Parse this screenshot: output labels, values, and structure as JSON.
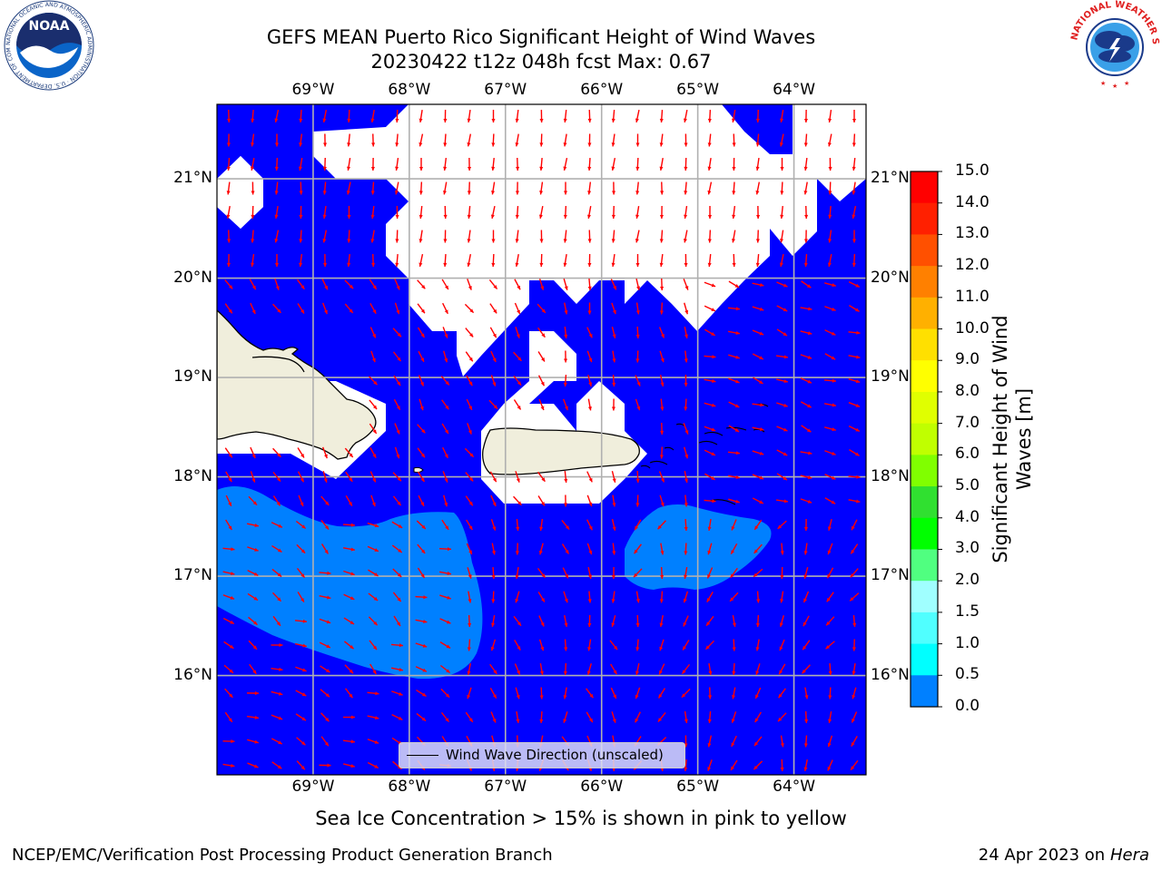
{
  "header": {
    "title_line1": "GEFS MEAN Puerto Rico Significant Height of Wind Waves",
    "title_line2": "20230422 t12z 048h fcst   Max: 0.67"
  },
  "map": {
    "lon_labels": [
      "69°W",
      "68°W",
      "67°W",
      "66°W",
      "65°W",
      "64°W"
    ],
    "lon_values": [
      -69,
      -68,
      -67,
      -66,
      -65,
      -64
    ],
    "lat_labels": [
      "21°N",
      "20°N",
      "19°N",
      "18°N",
      "17°N",
      "16°N"
    ],
    "lat_values": [
      21,
      20,
      19,
      18,
      17,
      16
    ],
    "extent": {
      "lon_min": -70.0,
      "lon_max": -63.25,
      "lat_min": 15.0,
      "lat_max": 21.75
    },
    "colors": {
      "water_low": "#0000ff",
      "water_mid": "#0080ff",
      "land": "#f0eedc",
      "arrow": "#ff0000",
      "grid": "#b0b0b0"
    }
  },
  "legend": {
    "label": "Wind Wave Direction (unscaled)"
  },
  "colorbar": {
    "label": "Significant Height of Wind Waves [m]",
    "ticks": [
      "15.0",
      "14.0",
      "13.0",
      "12.0",
      "11.0",
      "10.0",
      "9.0",
      "8.0",
      "7.0",
      "6.0",
      "5.0",
      "4.0",
      "3.0",
      "2.0",
      "1.5",
      "1.0",
      "0.5",
      "0.0"
    ],
    "colors": [
      "#ff0000",
      "#ff2000",
      "#ff5000",
      "#ff8000",
      "#ffb000",
      "#ffe000",
      "#ffff00",
      "#e0ff00",
      "#c0ff00",
      "#80ff00",
      "#30e030",
      "#00ff00",
      "#50ff80",
      "#a0ffff",
      "#50ffff",
      "#00ffff",
      "#0080ff",
      "#0000ff"
    ]
  },
  "notes": {
    "sea_ice": "Sea Ice Concentration > 15% is shown in pink to yellow"
  },
  "footer": {
    "left": "NCEP/EMC/Verification Post Processing Product Generation Branch",
    "right_date": "24 Apr 2023 on",
    "right_host": "Hera"
  },
  "logos": {
    "noaa": "NOAA",
    "noaa_ring": "NATIONAL OCEANIC AND ATMOSPHERIC ADMINISTRATION · U.S. DEPARTMENT OF COMMERCE",
    "nws_ring": "NATIONAL WEATHER SERVICE"
  }
}
